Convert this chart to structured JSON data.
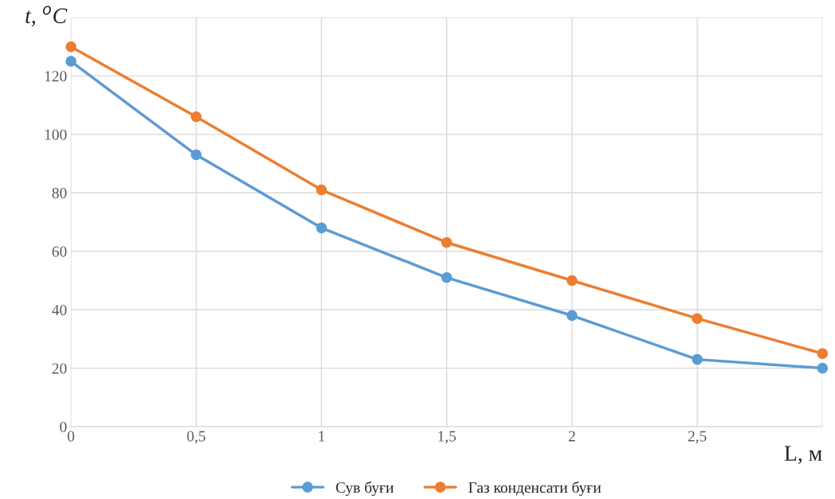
{
  "chart_data": {
    "type": "line",
    "xlabel": "L, м",
    "ylabel": "t, $^{o}$C",
    "x": [
      0,
      0.5,
      1,
      1.5,
      2,
      2.5,
      3
    ],
    "series": [
      {
        "name": "Сув буғи",
        "color": "#5b9bd5",
        "values": [
          125,
          93,
          68,
          51,
          38,
          23,
          20
        ]
      },
      {
        "name": "Газ конденсати буғи",
        "color": "#ed7d31",
        "values": [
          130,
          106,
          81,
          63,
          50,
          37,
          25
        ]
      }
    ],
    "xlim": [
      0,
      3
    ],
    "xticks": [
      0,
      {
        "value": 0.5,
        "label": "0,5"
      },
      1,
      {
        "value": 1.5,
        "label": "1,5"
      },
      2,
      {
        "value": 2.5,
        "label": "2,5"
      },
      {
        "value": 3,
        "label": null
      }
    ],
    "ylim": [
      0,
      140
    ],
    "yticks": [
      0,
      20,
      40,
      60,
      80,
      100,
      120,
      {
        "value": 140,
        "label": null
      }
    ],
    "grid": true,
    "legend": "bottom",
    "marker": "circle",
    "line_style": "solid"
  }
}
